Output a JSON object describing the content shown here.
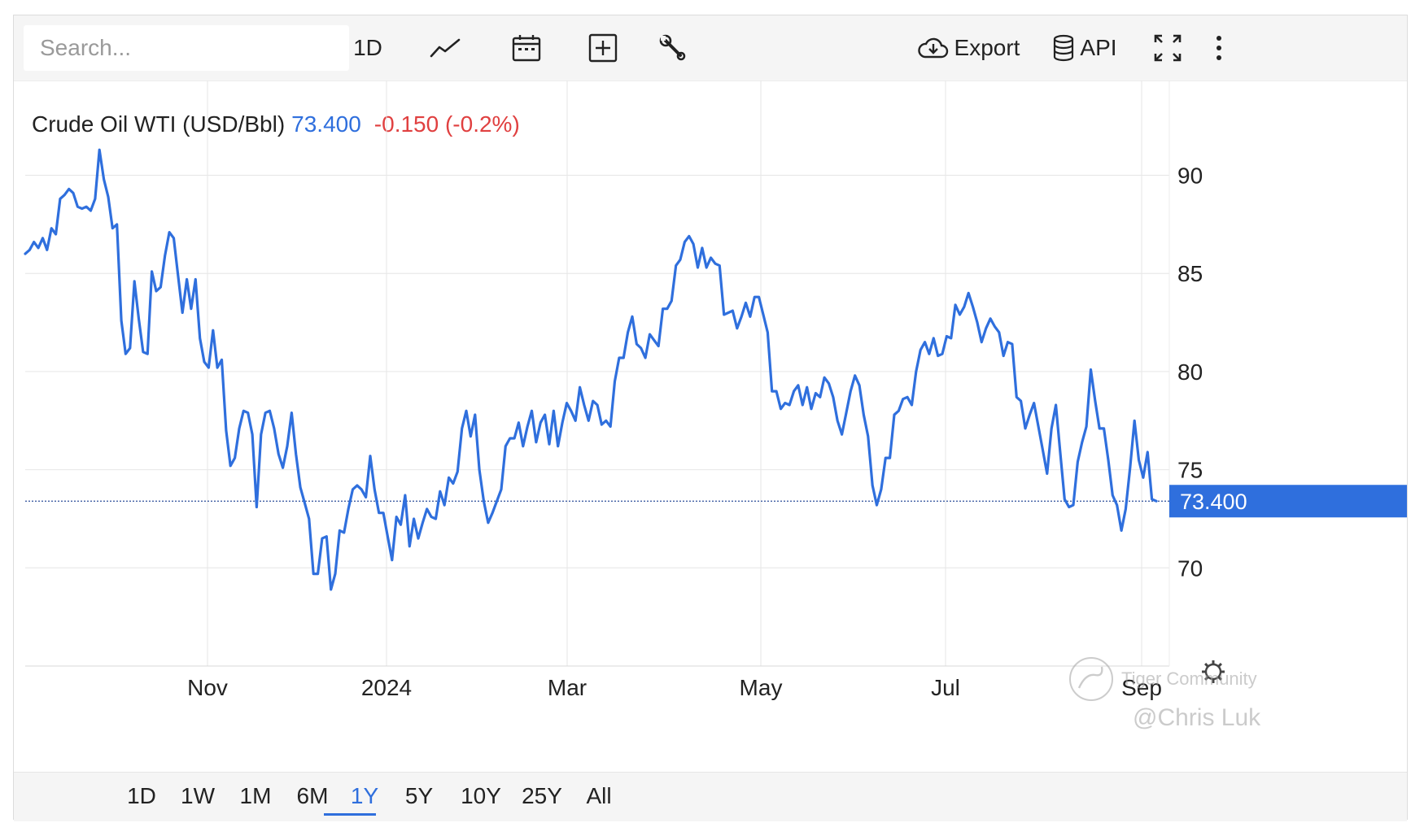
{
  "toolbar": {
    "search_placeholder": "Search...",
    "interval_label": "1D",
    "export_label": "Export",
    "api_label": "API",
    "icons": [
      "line-chart-icon",
      "calendar-icon",
      "add-indicator-icon",
      "wrench-icon",
      "cloud-download-icon",
      "database-icon",
      "fullscreen-icon",
      "more-vertical-icon"
    ]
  },
  "legend": {
    "name": "Crude Oil WTI (USD/Bbl)",
    "price": "73.400",
    "change": "-0.150 (-0.2%)"
  },
  "colors": {
    "line": "#2f6fdd",
    "negative": "#e04040",
    "grid": "#e6e6e6",
    "price_tag_bg": "#2f6fdd"
  },
  "chart_data": {
    "type": "line",
    "title": "Crude Oil WTI (USD/Bbl)",
    "xlabel": "",
    "ylabel": "",
    "ylim": [
      65,
      94
    ],
    "yticks": [
      70,
      75,
      80,
      85,
      90
    ],
    "xtick_labels": [
      "Nov",
      "2024",
      "Mar",
      "May",
      "Jul",
      "Sep"
    ],
    "last_price_label": "73.400",
    "grid": true,
    "series": [
      {
        "values": [
          86.0,
          86.2,
          86.6,
          86.3,
          86.8,
          86.2,
          87.3,
          87.0,
          88.8,
          89.0,
          89.3,
          89.1,
          88.4,
          88.3,
          88.4,
          88.2,
          88.8,
          91.3,
          89.8,
          88.9,
          87.3,
          87.5,
          82.6,
          80.9,
          81.2,
          84.6,
          82.7,
          81.0,
          80.9,
          85.1,
          84.1,
          84.3,
          85.9,
          87.1,
          86.8,
          84.9,
          83.0,
          84.7,
          83.2,
          84.7,
          81.7,
          80.5,
          80.2,
          82.1,
          80.2,
          80.6,
          77.0,
          75.2,
          75.6,
          77.1,
          78.0,
          77.9,
          76.8,
          73.1,
          76.8,
          77.9,
          78.0,
          77.1,
          75.8,
          75.1,
          76.2,
          77.9,
          75.8,
          74.1,
          73.3,
          72.5,
          69.7,
          69.7,
          71.5,
          71.6,
          68.9,
          69.7,
          71.9,
          71.8,
          73.0,
          74.0,
          74.2,
          74.0,
          73.6,
          75.7,
          74.0,
          72.8,
          72.8,
          71.6,
          70.4,
          72.6,
          72.2,
          73.7,
          71.1,
          72.5,
          71.5,
          72.3,
          73.0,
          72.6,
          72.5,
          73.9,
          73.2,
          74.6,
          74.3,
          74.9,
          77.1,
          78.0,
          76.7,
          77.8,
          75.0,
          73.4,
          72.3,
          72.8,
          73.4,
          74.0,
          76.2,
          76.6,
          76.6,
          77.4,
          76.2,
          77.2,
          78.0,
          76.4,
          77.4,
          77.8,
          76.3,
          78.0,
          76.2,
          77.4,
          78.4,
          78.0,
          77.5,
          79.2,
          78.3,
          77.5,
          78.5,
          78.3,
          77.3,
          77.5,
          77.2,
          79.5,
          80.7,
          80.7,
          82.0,
          82.8,
          81.4,
          81.2,
          80.7,
          81.9,
          81.6,
          81.3,
          83.2,
          83.2,
          83.6,
          85.4,
          85.7,
          86.6,
          86.9,
          86.5,
          85.3,
          86.3,
          85.3,
          85.8,
          85.5,
          85.4,
          82.9,
          83.0,
          83.1,
          82.2,
          82.8,
          83.5,
          82.8,
          83.8,
          83.8,
          82.9,
          82.0,
          79.0,
          79.0,
          78.1,
          78.4,
          78.3,
          79.0,
          79.3,
          78.3,
          79.2,
          78.1,
          78.9,
          78.7,
          79.7,
          79.4,
          78.7,
          77.5,
          76.8,
          77.9,
          79.0,
          79.8,
          79.3,
          77.8,
          76.7,
          74.2,
          73.2,
          74.0,
          75.6,
          75.6,
          77.8,
          78.0,
          78.6,
          78.7,
          78.3,
          80.0,
          81.1,
          81.5,
          80.9,
          81.7,
          80.8,
          80.9,
          81.8,
          81.7,
          83.4,
          82.9,
          83.3,
          84.0,
          83.3,
          82.5,
          81.5,
          82.2,
          82.7,
          82.3,
          82.0,
          80.8,
          81.5,
          81.4,
          78.7,
          78.5,
          77.1,
          77.8,
          78.4,
          77.2,
          76.0,
          74.8,
          77.1,
          78.3,
          75.9,
          73.5,
          73.1,
          73.2,
          75.4,
          76.4,
          77.2,
          80.1,
          78.5,
          77.1,
          77.1,
          75.5,
          73.7,
          73.2,
          71.9,
          73.0,
          75.1,
          77.5,
          75.5,
          74.6,
          75.9,
          73.5,
          73.4
        ]
      }
    ]
  },
  "ranges": {
    "items": [
      "1D",
      "1W",
      "1M",
      "6M",
      "1Y",
      "5Y",
      "10Y",
      "25Y",
      "All"
    ],
    "active": "1Y"
  },
  "watermark": {
    "brand": "Tiger Community",
    "author": "@Chris Luk"
  }
}
